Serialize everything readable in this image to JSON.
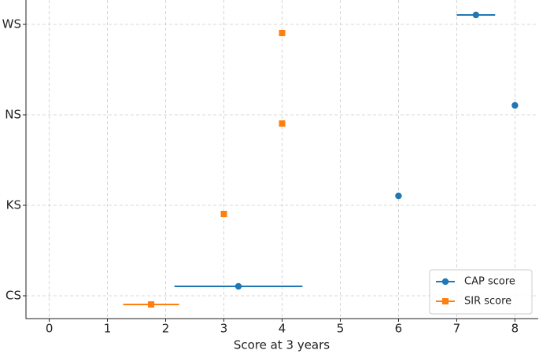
{
  "chart_data": {
    "type": "dotplot",
    "categories": [
      "CS",
      "KS",
      "NS",
      "WS"
    ],
    "xlabel": "Score at 3 years",
    "xlim": [
      -0.4,
      8.4
    ],
    "xticks": [
      0,
      1,
      2,
      3,
      4,
      5,
      6,
      7,
      8
    ],
    "grid": true,
    "legend": "lower right",
    "series": [
      {
        "name": "CAP score",
        "color": "#1f77b4",
        "marker": "circle",
        "values": [
          3.25,
          6.0,
          8.0,
          7.33
        ],
        "errors": [
          1.1,
          null,
          null,
          0.33
        ]
      },
      {
        "name": "SIR score",
        "color": "#ff7f0e",
        "marker": "square",
        "values": [
          1.75,
          3.0,
          4.0,
          4.0
        ],
        "errors": [
          0.48,
          null,
          null,
          null
        ]
      }
    ]
  }
}
